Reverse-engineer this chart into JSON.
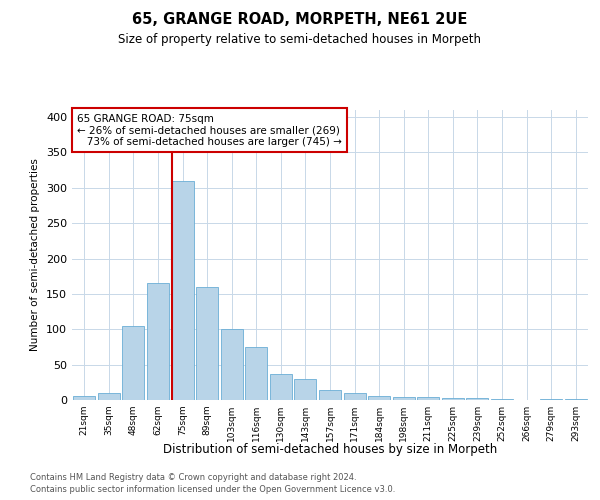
{
  "title": "65, GRANGE ROAD, MORPETH, NE61 2UE",
  "subtitle": "Size of property relative to semi-detached houses in Morpeth",
  "xlabel": "Distribution of semi-detached houses by size in Morpeth",
  "ylabel": "Number of semi-detached properties",
  "footnote1": "Contains HM Land Registry data © Crown copyright and database right 2024.",
  "footnote2": "Contains public sector information licensed under the Open Government Licence v3.0.",
  "categories": [
    "21sqm",
    "35sqm",
    "48sqm",
    "62sqm",
    "75sqm",
    "89sqm",
    "103sqm",
    "116sqm",
    "130sqm",
    "143sqm",
    "157sqm",
    "171sqm",
    "184sqm",
    "198sqm",
    "211sqm",
    "225sqm",
    "239sqm",
    "252sqm",
    "266sqm",
    "279sqm",
    "293sqm"
  ],
  "values": [
    5,
    10,
    105,
    165,
    310,
    160,
    100,
    75,
    37,
    30,
    14,
    10,
    5,
    4,
    4,
    3,
    3,
    1,
    0,
    2,
    1
  ],
  "property_index": 4,
  "property_label": "65 GRANGE ROAD: 75sqm",
  "pct_smaller": 26,
  "n_smaller": 269,
  "pct_larger": 73,
  "n_larger": 745,
  "bar_color": "#b8d4e8",
  "bar_edge_color": "#6aaed6",
  "highlight_line_color": "#cc0000",
  "annotation_box_color": "#cc0000",
  "background_color": "#ffffff",
  "grid_color": "#c8d8e8",
  "ylim_max": 410,
  "yticks": [
    0,
    50,
    100,
    150,
    200,
    250,
    300,
    350,
    400
  ]
}
